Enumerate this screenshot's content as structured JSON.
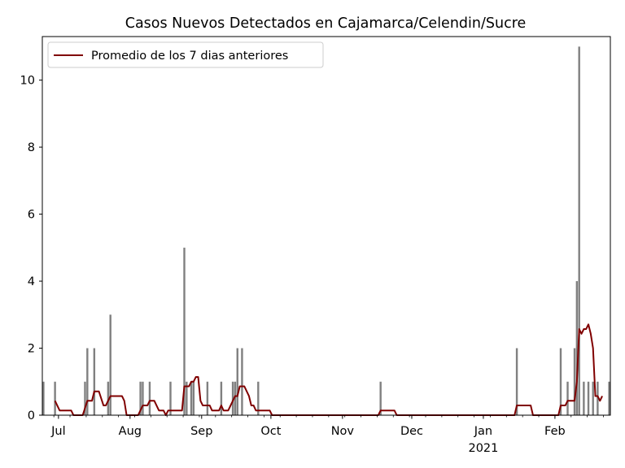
{
  "chart_data": {
    "type": "bar",
    "title": "Casos Nuevos Detectados en Cajamarca/Celendin/Sucre",
    "xlabel": "",
    "ylabel": "",
    "x_range": [
      "2020-06-24",
      "2021-02-24"
    ],
    "ylim": [
      0,
      11.3
    ],
    "y_ticks": [
      0,
      2,
      4,
      6,
      8,
      10
    ],
    "x_ticks": [
      {
        "date": "2020-07-01",
        "label": "Jul",
        "sublabel": ""
      },
      {
        "date": "2020-08-01",
        "label": "Aug",
        "sublabel": ""
      },
      {
        "date": "2020-09-01",
        "label": "Sep",
        "sublabel": ""
      },
      {
        "date": "2020-10-01",
        "label": "Oct",
        "sublabel": ""
      },
      {
        "date": "2020-11-01",
        "label": "Nov",
        "sublabel": ""
      },
      {
        "date": "2020-12-01",
        "label": "Dec",
        "sublabel": ""
      },
      {
        "date": "2021-01-01",
        "label": "Jan",
        "sublabel": "2021"
      },
      {
        "date": "2021-02-01",
        "label": "Feb",
        "sublabel": ""
      }
    ],
    "grid": false,
    "legend_position": "top-left",
    "series": [
      {
        "name": "",
        "kind": "bar",
        "color": "#808080",
        "points": [
          [
            "2020-06-24",
            1
          ],
          [
            "2020-06-29",
            1
          ],
          [
            "2020-07-12",
            1
          ],
          [
            "2020-07-13",
            2
          ],
          [
            "2020-07-16",
            2
          ],
          [
            "2020-07-22",
            1
          ],
          [
            "2020-07-23",
            3
          ],
          [
            "2020-08-05",
            1
          ],
          [
            "2020-08-06",
            1
          ],
          [
            "2020-08-09",
            1
          ],
          [
            "2020-08-18",
            1
          ],
          [
            "2020-08-24",
            5
          ],
          [
            "2020-08-25",
            1
          ],
          [
            "2020-08-27",
            1
          ],
          [
            "2020-08-28",
            1
          ],
          [
            "2020-09-03",
            1
          ],
          [
            "2020-09-09",
            1
          ],
          [
            "2020-09-14",
            1
          ],
          [
            "2020-09-15",
            1
          ],
          [
            "2020-09-16",
            2
          ],
          [
            "2020-09-18",
            2
          ],
          [
            "2020-09-25",
            1
          ],
          [
            "2020-11-17",
            1
          ],
          [
            "2021-01-15",
            2
          ],
          [
            "2021-02-03",
            2
          ],
          [
            "2021-02-06",
            1
          ],
          [
            "2021-02-09",
            2
          ],
          [
            "2021-02-10",
            4
          ],
          [
            "2021-02-11",
            11
          ],
          [
            "2021-02-13",
            1
          ],
          [
            "2021-02-15",
            1
          ],
          [
            "2021-02-17",
            1
          ],
          [
            "2021-02-19",
            1
          ],
          [
            "2021-02-24",
            1
          ]
        ]
      },
      {
        "name": "Promedio de los 7 dias anteriores",
        "kind": "line",
        "color": "#800000",
        "points": [
          [
            "2020-06-29",
            0.43
          ],
          [
            "2020-07-01",
            0.14
          ],
          [
            "2020-07-06",
            0.14
          ],
          [
            "2020-07-07",
            0
          ],
          [
            "2020-07-11",
            0
          ],
          [
            "2020-07-13",
            0.43
          ],
          [
            "2020-07-15",
            0.43
          ],
          [
            "2020-07-16",
            0.71
          ],
          [
            "2020-07-18",
            0.71
          ],
          [
            "2020-07-20",
            0.29
          ],
          [
            "2020-07-21",
            0.29
          ],
          [
            "2020-07-23",
            0.57
          ],
          [
            "2020-07-28",
            0.57
          ],
          [
            "2020-07-29",
            0.43
          ],
          [
            "2020-07-30",
            0
          ],
          [
            "2020-08-04",
            0
          ],
          [
            "2020-08-06",
            0.29
          ],
          [
            "2020-08-08",
            0.29
          ],
          [
            "2020-08-09",
            0.43
          ],
          [
            "2020-08-11",
            0.43
          ],
          [
            "2020-08-13",
            0.14
          ],
          [
            "2020-08-15",
            0.14
          ],
          [
            "2020-08-16",
            0
          ],
          [
            "2020-08-17",
            0.14
          ],
          [
            "2020-08-23",
            0.14
          ],
          [
            "2020-08-24",
            0.86
          ],
          [
            "2020-08-26",
            0.86
          ],
          [
            "2020-08-27",
            1.0
          ],
          [
            "2020-08-28",
            1.0
          ],
          [
            "2020-08-29",
            1.14
          ],
          [
            "2020-08-30",
            1.14
          ],
          [
            "2020-08-31",
            0.43
          ],
          [
            "2020-09-01",
            0.29
          ],
          [
            "2020-09-04",
            0.29
          ],
          [
            "2020-09-05",
            0.14
          ],
          [
            "2020-09-08",
            0.14
          ],
          [
            "2020-09-09",
            0.29
          ],
          [
            "2020-09-10",
            0.14
          ],
          [
            "2020-09-12",
            0.14
          ],
          [
            "2020-09-15",
            0.57
          ],
          [
            "2020-09-16",
            0.57
          ],
          [
            "2020-09-17",
            0.86
          ],
          [
            "2020-09-19",
            0.86
          ],
          [
            "2020-09-21",
            0.57
          ],
          [
            "2020-09-22",
            0.29
          ],
          [
            "2020-09-23",
            0.29
          ],
          [
            "2020-09-24",
            0.14
          ],
          [
            "2020-09-25",
            0.14
          ],
          [
            "2020-09-30",
            0.14
          ],
          [
            "2020-10-01",
            0
          ],
          [
            "2020-11-16",
            0
          ],
          [
            "2020-11-17",
            0.14
          ],
          [
            "2020-11-23",
            0.14
          ],
          [
            "2020-11-24",
            0
          ],
          [
            "2021-01-14",
            0
          ],
          [
            "2021-01-15",
            0.29
          ],
          [
            "2021-01-21",
            0.29
          ],
          [
            "2021-01-22",
            0
          ],
          [
            "2021-02-02",
            0
          ],
          [
            "2021-02-03",
            0.29
          ],
          [
            "2021-02-05",
            0.29
          ],
          [
            "2021-02-06",
            0.43
          ],
          [
            "2021-02-09",
            0.43
          ],
          [
            "2021-02-10",
            1.0
          ],
          [
            "2021-02-11",
            2.57
          ],
          [
            "2021-02-12",
            2.43
          ],
          [
            "2021-02-13",
            2.57
          ],
          [
            "2021-02-14",
            2.57
          ],
          [
            "2021-02-15",
            2.71
          ],
          [
            "2021-02-16",
            2.43
          ],
          [
            "2021-02-17",
            2.0
          ],
          [
            "2021-02-18",
            0.57
          ],
          [
            "2021-02-19",
            0.57
          ],
          [
            "2021-02-20",
            0.43
          ],
          [
            "2021-02-21",
            0.57
          ]
        ]
      }
    ]
  }
}
